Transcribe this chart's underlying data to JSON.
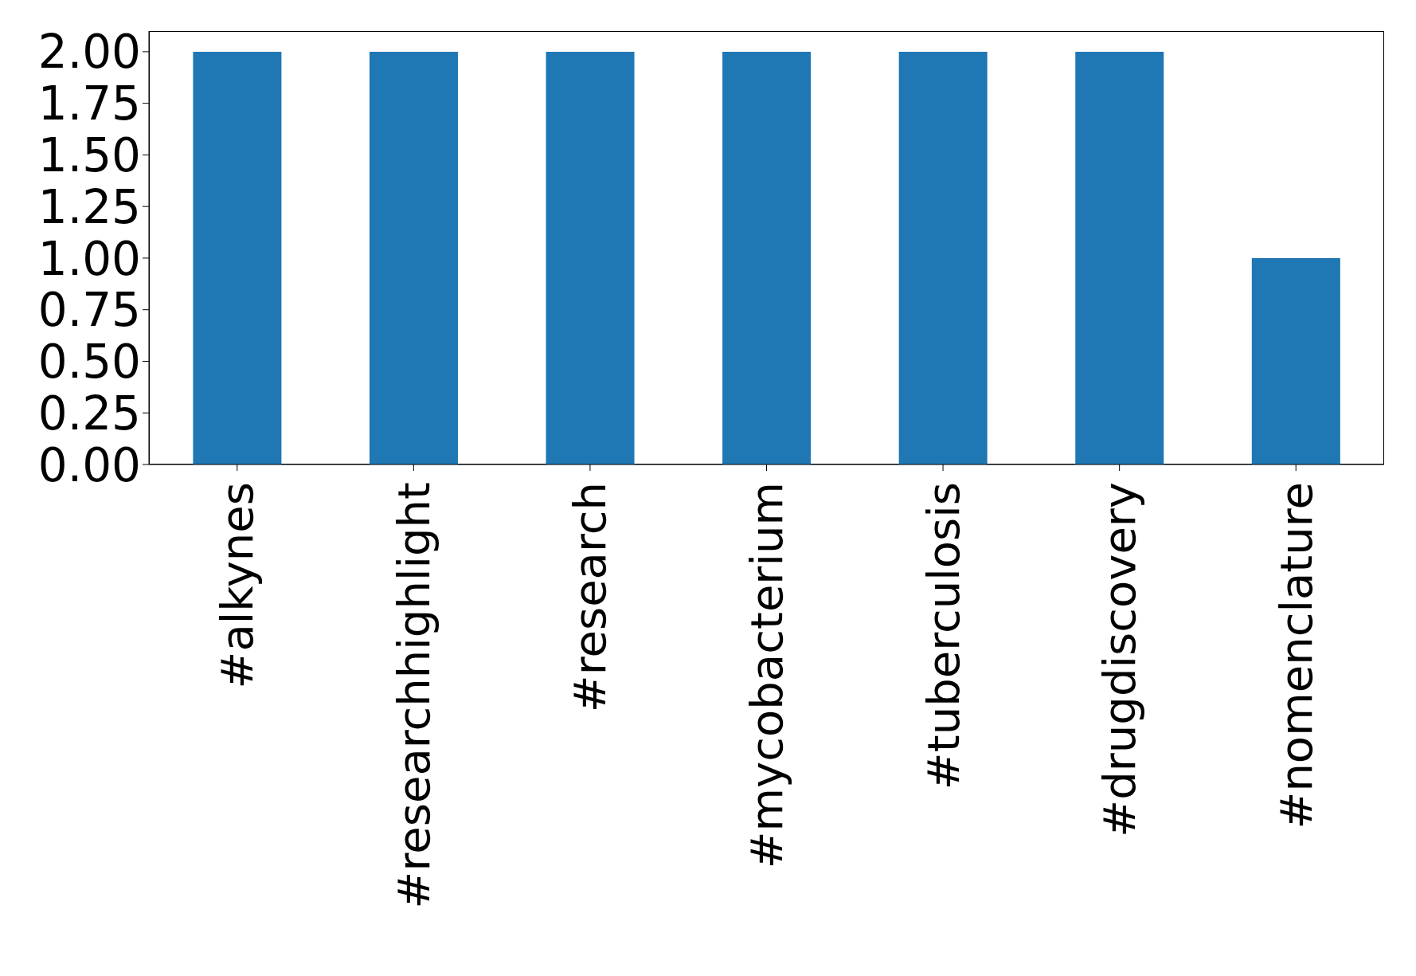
{
  "chart_data": {
    "type": "bar",
    "categories": [
      "#alkynes",
      "#researchhighlight",
      "#research",
      "#mycobacterium",
      "#tuberculosis",
      "#drugdiscovery",
      "#nomenclature"
    ],
    "values": [
      2,
      2,
      2,
      2,
      2,
      2,
      1
    ],
    "color": "#1f77b4",
    "ylim": [
      0,
      2.1
    ],
    "yticks": [
      {
        "value": 0,
        "label": "0.00"
      },
      {
        "value": 0.25,
        "label": "0.25"
      },
      {
        "value": 0.5,
        "label": "0.50"
      },
      {
        "value": 0.75,
        "label": "0.75"
      },
      {
        "value": 1,
        "label": "1.00"
      },
      {
        "value": 1.25,
        "label": "1.25"
      },
      {
        "value": 1.5,
        "label": "1.50"
      },
      {
        "value": 1.75,
        "label": "1.75"
      },
      {
        "value": 2,
        "label": "2.00"
      }
    ],
    "grid": false
  }
}
